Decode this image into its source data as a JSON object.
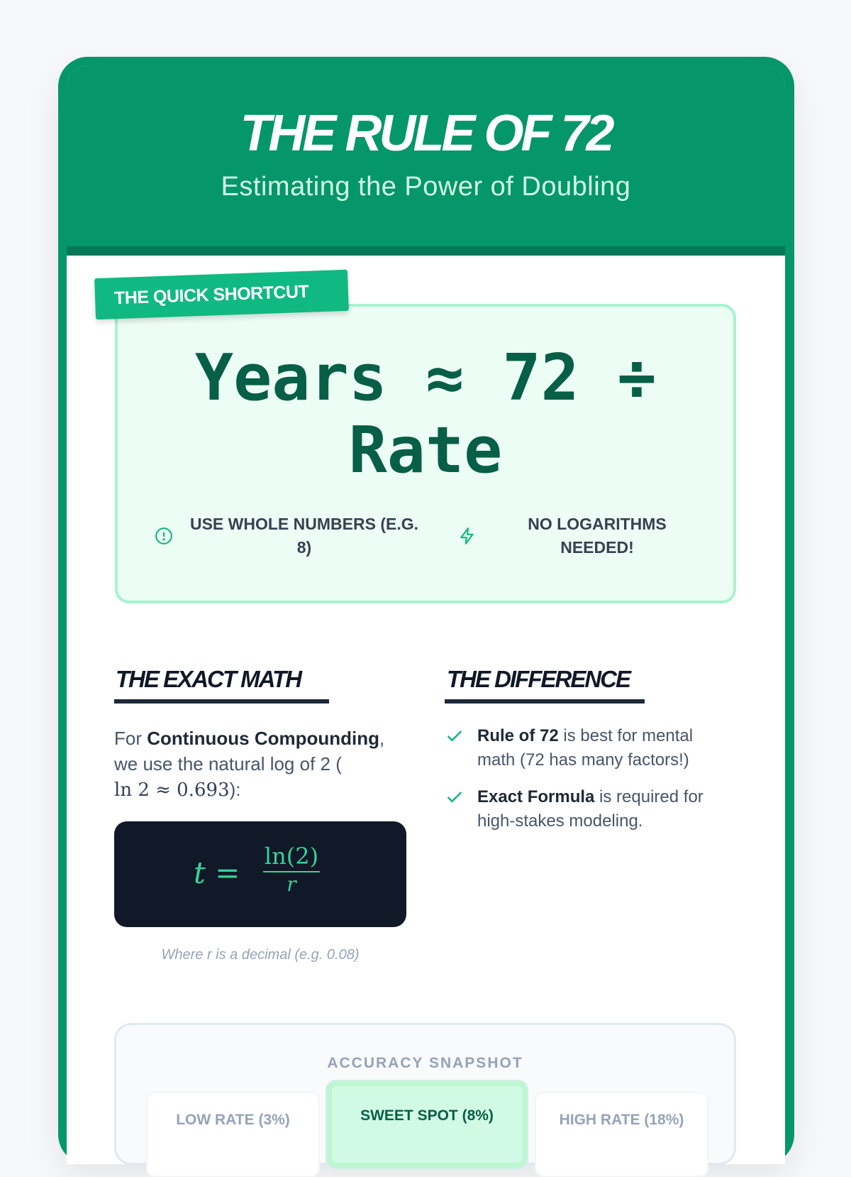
{
  "header": {
    "title": "THE RULE OF 72",
    "subtitle": "Estimating the Power of Doubling"
  },
  "shortcut": {
    "tag": "THE QUICK SHORTCUT",
    "formula_line1": "Years ≈ 72 ÷",
    "formula_line2": "Rate",
    "bullets": [
      {
        "icon": "alert-circle-icon",
        "text": "USE WHOLE NUMBERS (E.G. 8)"
      },
      {
        "icon": "lightning-icon",
        "text": "NO LOGARITHMS NEEDED!"
      }
    ]
  },
  "exact": {
    "heading": "THE EXACT MATH",
    "para_pre": "For ",
    "para_bold": "Continuous Compounding",
    "para_post": ", we use the natural log of 2 (",
    "para_math": "ln 2 ≈ 0.693",
    "para_end": "):",
    "formula_lhs": "t =",
    "formula_num": "ln(2)",
    "formula_den": "r",
    "caption": "Where r is a decimal (e.g. 0.08)"
  },
  "difference": {
    "heading": "THE DIFFERENCE",
    "items": [
      {
        "bold": "Rule of 72",
        "text": " is best for mental math (72 has many factors!)"
      },
      {
        "bold": "Exact Formula",
        "text": " is required for high-stakes modeling."
      }
    ]
  },
  "snapshot": {
    "title": "ACCURACY SNAPSHOT",
    "cards": [
      "LOW RATE (3%)",
      "SWEET SPOT (8%)",
      "HIGH RATE (18%)"
    ]
  },
  "colors": {
    "brand": "#059669",
    "accent": "#10b981",
    "dark": "#111827"
  }
}
